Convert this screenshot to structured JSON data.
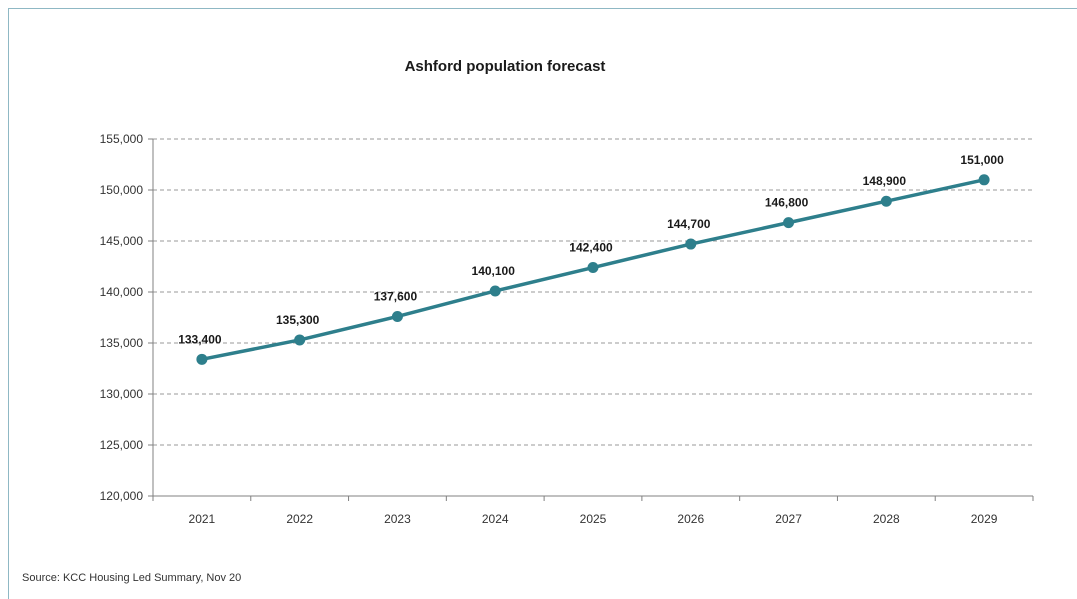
{
  "chart_data": {
    "type": "line",
    "title": "Ashford population forecast",
    "source": "Source: KCC Housing Led Summary, Nov 20",
    "categories": [
      "2021",
      "2022",
      "2023",
      "2024",
      "2025",
      "2026",
      "2027",
      "2028",
      "2029"
    ],
    "series": [
      {
        "values": [
          133400,
          135300,
          137600,
          140100,
          142400,
          144700,
          146800,
          148900,
          151000
        ],
        "labels": [
          "133,400",
          "135,300",
          "137,600",
          "140,100",
          "142,400",
          "144,700",
          "146,800",
          "148,900",
          "151,000"
        ],
        "color": "#2e7f8c"
      }
    ],
    "ylim": [
      120000,
      155000
    ],
    "yticks": [
      120000,
      125000,
      130000,
      135000,
      140000,
      145000,
      150000,
      155000
    ],
    "ytick_labels": [
      "120,000",
      "125,000",
      "130,000",
      "135,000",
      "140,000",
      "145,000",
      "150,000",
      "155,000"
    ],
    "grid": "horizontal dashed",
    "legend": "none"
  }
}
